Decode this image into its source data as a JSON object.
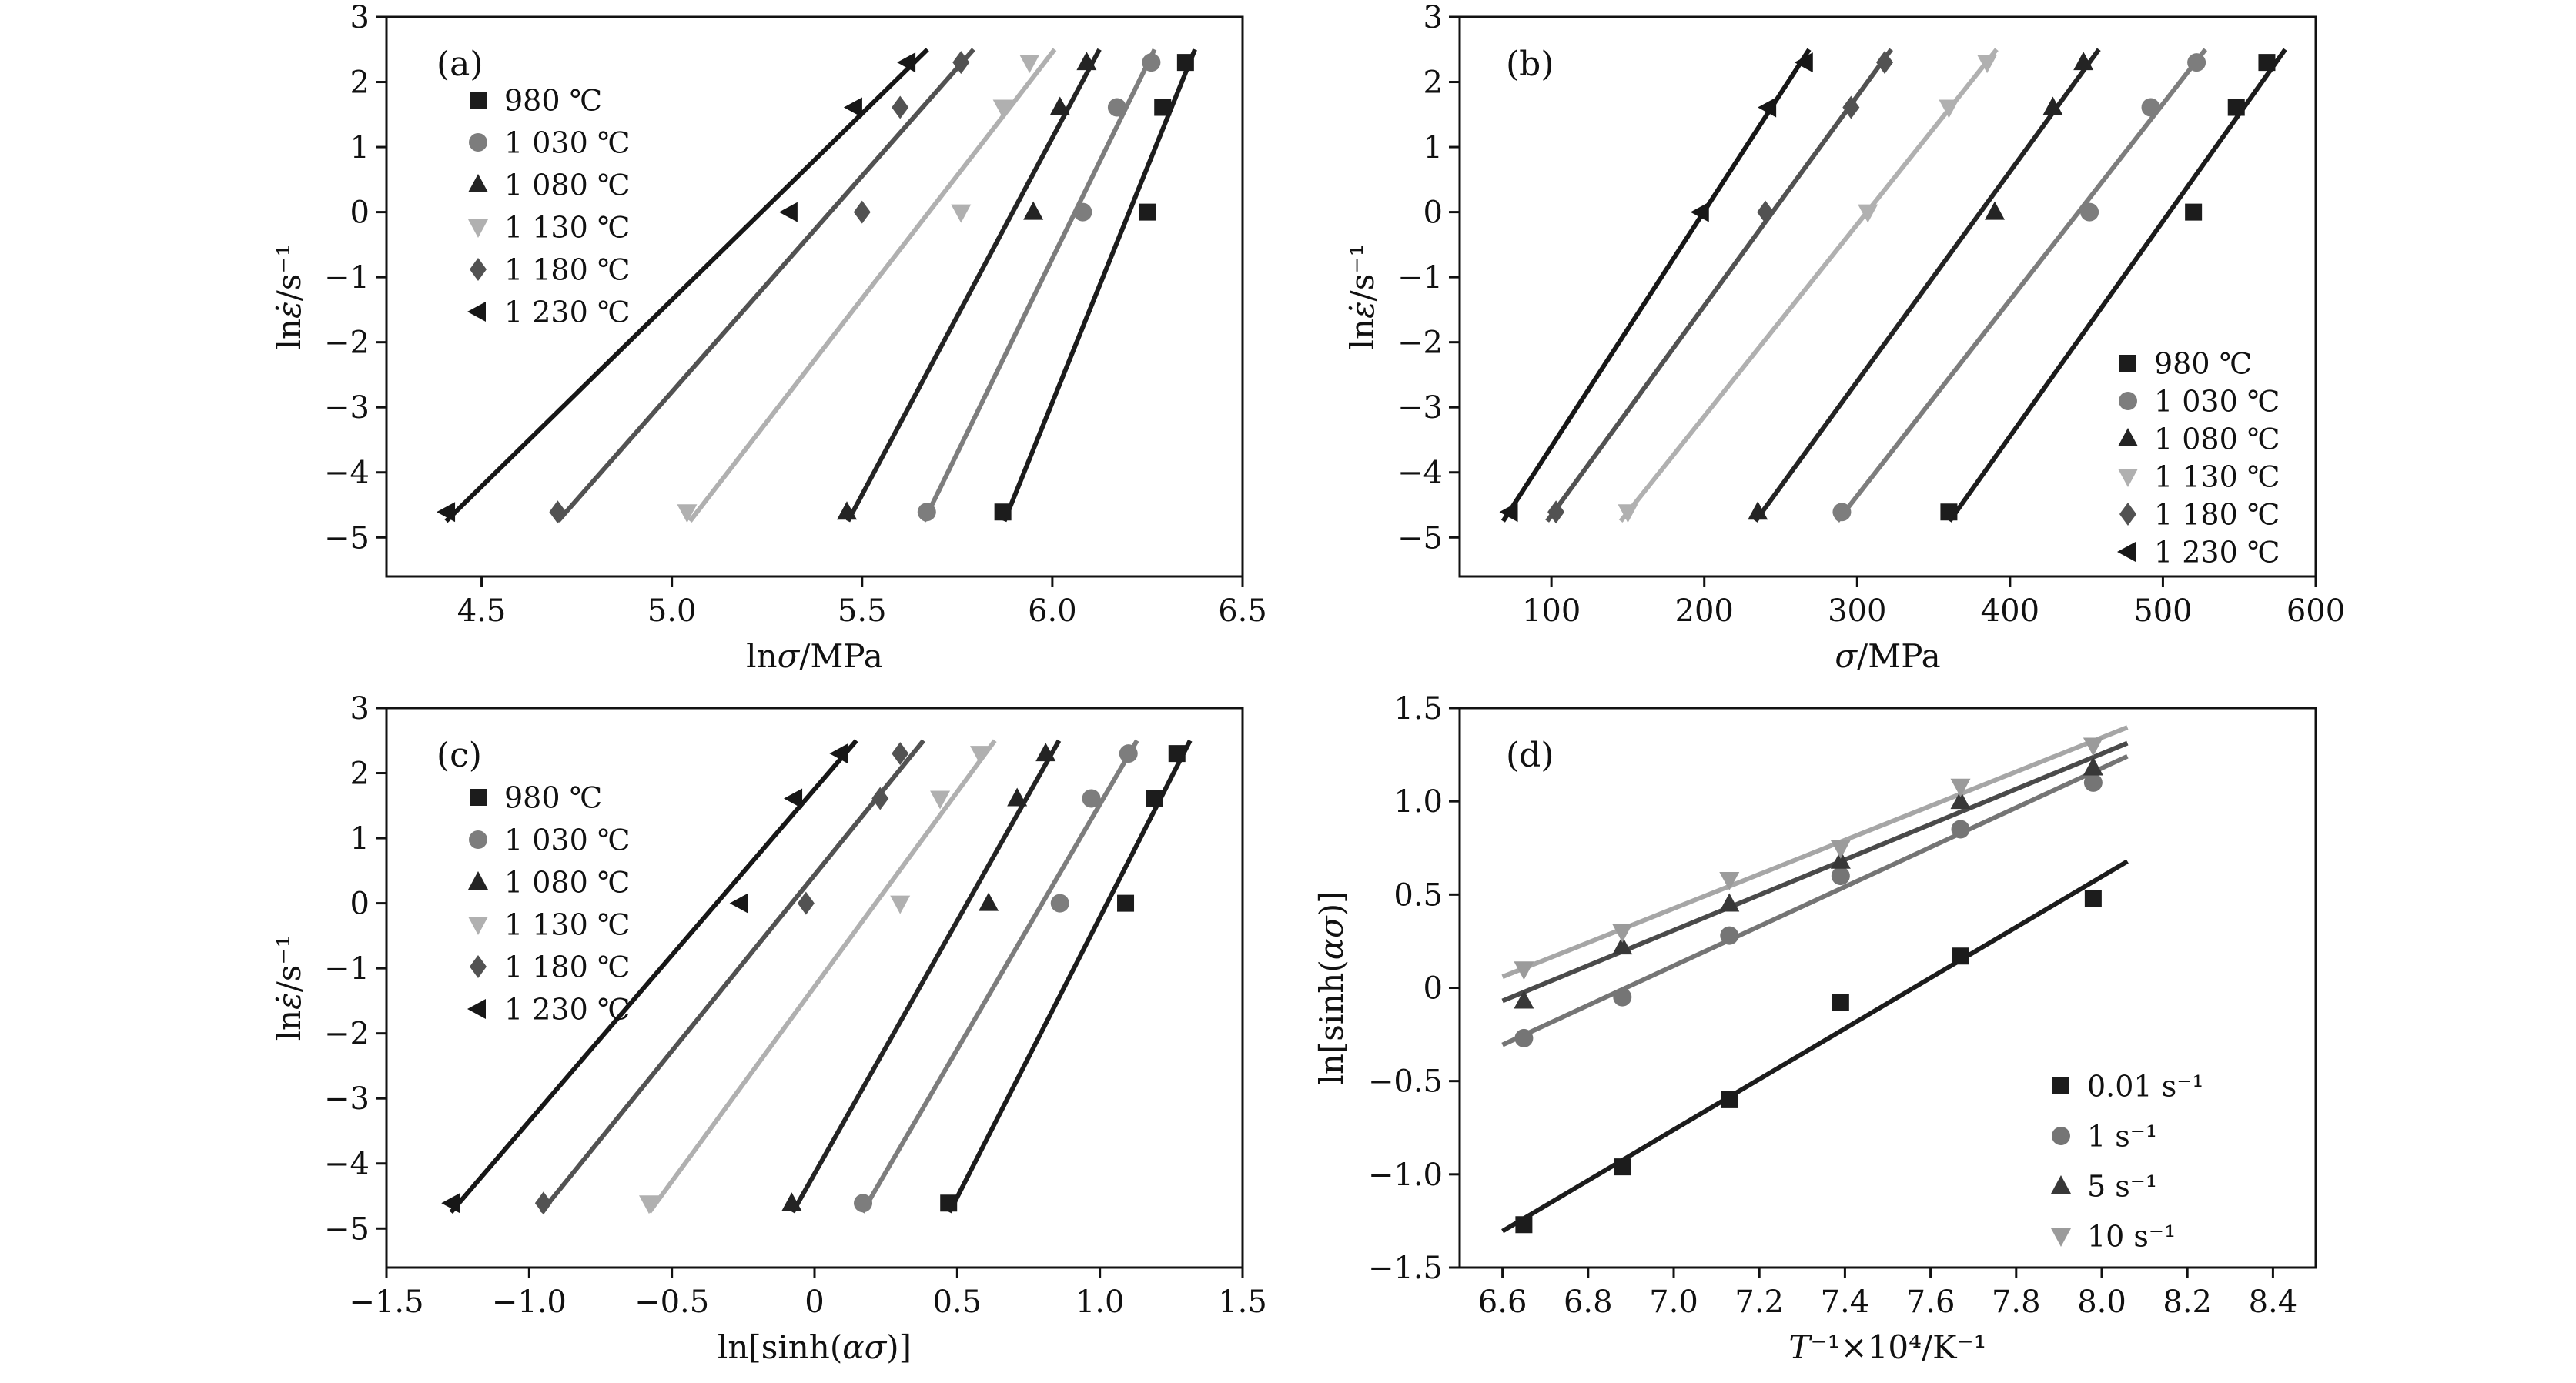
{
  "figure": {
    "background": "#ffffff",
    "axis_color": "#111111"
  },
  "chart_data": [
    {
      "id": "a",
      "panel_label": "(a)",
      "type": "scatter",
      "xlabel_segments": [
        {
          "text": "ln",
          "italic": false
        },
        {
          "text": "σ",
          "italic": true
        },
        {
          "text": "/MPa",
          "italic": false
        }
      ],
      "ylabel_segments": [
        {
          "text": "ln",
          "italic": false
        },
        {
          "text": "ε̇",
          "italic": true
        },
        {
          "text": "/s⁻¹",
          "italic": false
        }
      ],
      "xlim": [
        4.25,
        6.5
      ],
      "ylim": [
        -5.6,
        3
      ],
      "xticks": [
        4.5,
        5.0,
        5.5,
        6.0,
        6.5
      ],
      "xtick_labels": [
        "4.5",
        "5.0",
        "5.5",
        "6.0",
        "6.5"
      ],
      "yticks": [
        3,
        2,
        1,
        0,
        -1,
        -2,
        -3,
        -4,
        -5
      ],
      "ytick_labels": [
        "3",
        "2",
        "1",
        "0",
        "−1",
        "−2",
        "−3",
        "−4",
        "−5"
      ],
      "legend_position": "top-left",
      "grid": false,
      "series": [
        {
          "name": "980 ℃",
          "marker": "square",
          "color": "#1c1c1c",
          "line_color": "#1c1c1c",
          "points": [
            [
              5.87,
              -4.61
            ],
            [
              6.25,
              0
            ],
            [
              6.29,
              1.61
            ],
            [
              6.35,
              2.3
            ]
          ]
        },
        {
          "name": "1 030 ℃",
          "marker": "circle",
          "color": "#7d7d7d",
          "line_color": "#7d7d7d",
          "points": [
            [
              5.67,
              -4.61
            ],
            [
              6.08,
              0
            ],
            [
              6.17,
              1.61
            ],
            [
              6.26,
              2.3
            ]
          ]
        },
        {
          "name": "1 080 ℃",
          "marker": "triangle-up",
          "color": "#242424",
          "line_color": "#242424",
          "points": [
            [
              5.46,
              -4.61
            ],
            [
              5.95,
              0
            ],
            [
              6.02,
              1.61
            ],
            [
              6.09,
              2.3
            ]
          ]
        },
        {
          "name": "1 130 ℃",
          "marker": "triangle-down",
          "color": "#b0b0b0",
          "line_color": "#b0b0b0",
          "points": [
            [
              5.04,
              -4.61
            ],
            [
              5.76,
              0
            ],
            [
              5.87,
              1.61
            ],
            [
              5.94,
              2.3
            ]
          ]
        },
        {
          "name": "1 180 ℃",
          "marker": "diamond",
          "color": "#525252",
          "line_color": "#525252",
          "points": [
            [
              4.7,
              -4.61
            ],
            [
              5.5,
              0
            ],
            [
              5.6,
              1.61
            ],
            [
              5.76,
              2.3
            ]
          ]
        },
        {
          "name": "1 230 ℃",
          "marker": "triangle-left",
          "color": "#171717",
          "line_color": "#171717",
          "points": [
            [
              4.41,
              -4.61
            ],
            [
              5.31,
              0
            ],
            [
              5.48,
              1.61
            ],
            [
              5.62,
              2.3
            ]
          ]
        }
      ]
    },
    {
      "id": "b",
      "panel_label": "(b)",
      "type": "scatter",
      "xlabel_segments": [
        {
          "text": "σ",
          "italic": true
        },
        {
          "text": "/MPa",
          "italic": false
        }
      ],
      "ylabel_segments": [
        {
          "text": "ln",
          "italic": false
        },
        {
          "text": "ε̇",
          "italic": true
        },
        {
          "text": "/s⁻¹",
          "italic": false
        }
      ],
      "xlim": [
        40,
        600
      ],
      "ylim": [
        -5.6,
        3
      ],
      "xticks": [
        100,
        200,
        300,
        400,
        500,
        600
      ],
      "xtick_labels": [
        "100",
        "200",
        "300",
        "400",
        "500",
        "600"
      ],
      "yticks": [
        3,
        2,
        1,
        0,
        -1,
        -2,
        -3,
        -4,
        -5
      ],
      "ytick_labels": [
        "3",
        "2",
        "1",
        "0",
        "−1",
        "−2",
        "−3",
        "−4",
        "−5"
      ],
      "legend_position": "bottom-right",
      "grid": false,
      "series": [
        {
          "name": "980 ℃",
          "marker": "square",
          "color": "#1c1c1c",
          "line_color": "#1c1c1c",
          "points": [
            [
              360,
              -4.61
            ],
            [
              520,
              0
            ],
            [
              548,
              1.61
            ],
            [
              568,
              2.3
            ]
          ]
        },
        {
          "name": "1 030 ℃",
          "marker": "circle",
          "color": "#7d7d7d",
          "line_color": "#7d7d7d",
          "points": [
            [
              290,
              -4.61
            ],
            [
              452,
              0
            ],
            [
              492,
              1.61
            ],
            [
              522,
              2.3
            ]
          ]
        },
        {
          "name": "1 080 ℃",
          "marker": "triangle-up",
          "color": "#242424",
          "line_color": "#242424",
          "points": [
            [
              235,
              -4.61
            ],
            [
              390,
              0
            ],
            [
              428,
              1.61
            ],
            [
              448,
              2.3
            ]
          ]
        },
        {
          "name": "1 130 ℃",
          "marker": "triangle-down",
          "color": "#b0b0b0",
          "line_color": "#b0b0b0",
          "points": [
            [
              150,
              -4.61
            ],
            [
              307,
              0
            ],
            [
              360,
              1.61
            ],
            [
              385,
              2.3
            ]
          ]
        },
        {
          "name": "1 180 ℃",
          "marker": "diamond",
          "color": "#525252",
          "line_color": "#525252",
          "points": [
            [
              103,
              -4.61
            ],
            [
              240,
              0
            ],
            [
              296,
              1.61
            ],
            [
              318,
              2.3
            ]
          ]
        },
        {
          "name": "1 230 ℃",
          "marker": "triangle-left",
          "color": "#171717",
          "line_color": "#171717",
          "points": [
            [
              73,
              -4.61
            ],
            [
              198,
              0
            ],
            [
              242,
              1.61
            ],
            [
              266,
              2.3
            ]
          ]
        }
      ]
    },
    {
      "id": "c",
      "panel_label": "(c)",
      "type": "scatter",
      "xlabel_segments": [
        {
          "text": "ln[sinh(",
          "italic": false
        },
        {
          "text": "ασ",
          "italic": true
        },
        {
          "text": ")]",
          "italic": false
        }
      ],
      "ylabel_segments": [
        {
          "text": "ln",
          "italic": false
        },
        {
          "text": "ε̇",
          "italic": true
        },
        {
          "text": "/s⁻¹",
          "italic": false
        }
      ],
      "xlim": [
        -1.5,
        1.5
      ],
      "ylim": [
        -5.6,
        3
      ],
      "xticks": [
        -1.5,
        -1.0,
        -0.5,
        0,
        0.5,
        1.0,
        1.5
      ],
      "xtick_labels": [
        "−1.5",
        "−1.0",
        "−0.5",
        "0",
        "0.5",
        "1.0",
        "1.5"
      ],
      "yticks": [
        3,
        2,
        1,
        0,
        -1,
        -2,
        -3,
        -4,
        -5
      ],
      "ytick_labels": [
        "3",
        "2",
        "1",
        "0",
        "−1",
        "−2",
        "−3",
        "−4",
        "−5"
      ],
      "legend_position": "top-left",
      "grid": false,
      "series": [
        {
          "name": "980 ℃",
          "marker": "square",
          "color": "#1c1c1c",
          "line_color": "#1c1c1c",
          "points": [
            [
              0.47,
              -4.61
            ],
            [
              1.09,
              0
            ],
            [
              1.19,
              1.61
            ],
            [
              1.27,
              2.3
            ]
          ]
        },
        {
          "name": "1 030 ℃",
          "marker": "circle",
          "color": "#7d7d7d",
          "line_color": "#7d7d7d",
          "points": [
            [
              0.17,
              -4.61
            ],
            [
              0.86,
              0
            ],
            [
              0.97,
              1.61
            ],
            [
              1.1,
              2.3
            ]
          ]
        },
        {
          "name": "1 080 ℃",
          "marker": "triangle-up",
          "color": "#242424",
          "line_color": "#242424",
          "points": [
            [
              -0.08,
              -4.61
            ],
            [
              0.61,
              0
            ],
            [
              0.71,
              1.61
            ],
            [
              0.81,
              2.3
            ]
          ]
        },
        {
          "name": "1 130 ℃",
          "marker": "triangle-down",
          "color": "#b0b0b0",
          "line_color": "#b0b0b0",
          "points": [
            [
              -0.58,
              -4.61
            ],
            [
              0.3,
              0
            ],
            [
              0.44,
              1.61
            ],
            [
              0.58,
              2.3
            ]
          ]
        },
        {
          "name": "1 180 ℃",
          "marker": "diamond",
          "color": "#525252",
          "line_color": "#525252",
          "points": [
            [
              -0.95,
              -4.61
            ],
            [
              -0.03,
              0
            ],
            [
              0.23,
              1.61
            ],
            [
              0.3,
              2.3
            ]
          ]
        },
        {
          "name": "1 230 ℃",
          "marker": "triangle-left",
          "color": "#171717",
          "line_color": "#171717",
          "points": [
            [
              -1.27,
              -4.61
            ],
            [
              -0.26,
              0
            ],
            [
              -0.07,
              1.61
            ],
            [
              0.09,
              2.3
            ]
          ]
        }
      ]
    },
    {
      "id": "d",
      "panel_label": "(d)",
      "type": "scatter",
      "xlabel_segments": [
        {
          "text": "T",
          "italic": true
        },
        {
          "text": "⁻¹×10⁴/K⁻¹",
          "italic": false
        }
      ],
      "ylabel_segments": [
        {
          "text": "ln[sinh(",
          "italic": false
        },
        {
          "text": "ασ",
          "italic": true
        },
        {
          "text": ")]",
          "italic": false
        }
      ],
      "xlim": [
        6.5,
        8.5
      ],
      "ylim": [
        -1.5,
        1.5
      ],
      "xticks": [
        6.6,
        6.8,
        7.0,
        7.2,
        7.4,
        7.6,
        7.8,
        8.0,
        8.2,
        8.4
      ],
      "xtick_labels": [
        "6.6",
        "6.8",
        "7.0",
        "7.2",
        "7.4",
        "7.6",
        "7.8",
        "8.0",
        "8.2",
        "8.4"
      ],
      "yticks": [
        1.5,
        1.0,
        0.5,
        0,
        -0.5,
        -1.0,
        -1.5
      ],
      "ytick_labels": [
        "1.5",
        "1.0",
        "0.5",
        "0",
        "−0.5",
        "−1.0",
        "−1.5"
      ],
      "legend_position": "bottom-right",
      "grid": false,
      "series": [
        {
          "name": "0.01 s⁻¹",
          "marker": "square",
          "color": "#1c1c1c",
          "line_color": "#1c1c1c",
          "points": [
            [
              6.65,
              -1.27
            ],
            [
              6.88,
              -0.96
            ],
            [
              7.13,
              -0.6
            ],
            [
              7.39,
              -0.08
            ],
            [
              7.67,
              0.17
            ],
            [
              7.98,
              0.48
            ]
          ]
        },
        {
          "name": "1 s⁻¹",
          "marker": "circle",
          "color": "#757575",
          "line_color": "#757575",
          "points": [
            [
              6.65,
              -0.27
            ],
            [
              6.88,
              -0.05
            ],
            [
              7.13,
              0.28
            ],
            [
              7.39,
              0.6
            ],
            [
              7.67,
              0.85
            ],
            [
              7.98,
              1.1
            ]
          ]
        },
        {
          "name": "5 s⁻¹",
          "marker": "triangle-up",
          "color": "#383838",
          "line_color": "#4a4a4a",
          "points": [
            [
              6.65,
              -0.07
            ],
            [
              6.88,
              0.22
            ],
            [
              7.13,
              0.45
            ],
            [
              7.39,
              0.68
            ],
            [
              7.67,
              1.0
            ],
            [
              7.98,
              1.18
            ]
          ]
        },
        {
          "name": "10 s⁻¹",
          "marker": "triangle-down",
          "color": "#9b9b9b",
          "line_color": "#a6a6a6",
          "points": [
            [
              6.65,
              0.1
            ],
            [
              6.88,
              0.3
            ],
            [
              7.13,
              0.58
            ],
            [
              7.39,
              0.75
            ],
            [
              7.67,
              1.08
            ],
            [
              7.98,
              1.3
            ]
          ]
        }
      ]
    }
  ]
}
